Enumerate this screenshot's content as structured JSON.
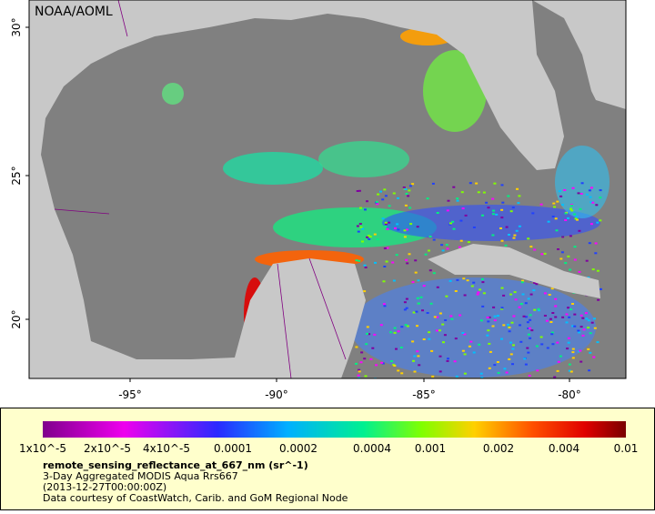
{
  "map": {
    "credit": "NOAA/AOML",
    "lat_labels": [
      "30°",
      "25°",
      "20°"
    ],
    "lon_labels": [
      "-95°",
      "-90°",
      "-85°",
      "-80°"
    ]
  },
  "colorbar": {
    "labels": [
      "1x10^-5",
      "2x10^-5",
      "4x10^-5",
      "0.0001",
      "0.0002",
      "0.0004",
      "0.001",
      "0.002",
      "0.004",
      "0.01"
    ],
    "variable": "remote_sensing_reflectance_at_667_nm (sr^-1)",
    "lines": [
      "3-Day Aggregated MODIS Aqua Rrs667",
      "(2013-12-27T00:00:00Z)",
      "Data courtesy of CoastWatch, Carib. and GoM Regional Node"
    ]
  }
}
